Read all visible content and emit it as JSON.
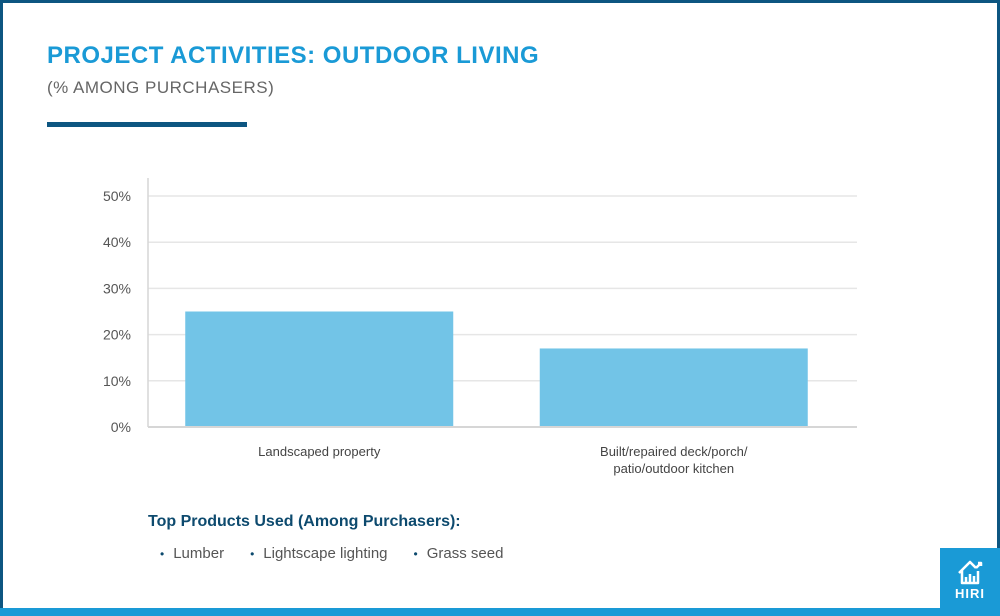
{
  "title": "PROJECT ACTIVITIES: OUTDOOR LIVING",
  "subtitle": "(% AMONG PURCHASERS)",
  "chart_data": {
    "type": "bar",
    "categories": [
      "Landscaped property",
      "Built/repaired deck/porch/ patio/outdoor kitchen"
    ],
    "category_lines": [
      [
        "Landscaped property"
      ],
      [
        "Built/repaired deck/porch/",
        "patio/outdoor kitchen"
      ]
    ],
    "values": [
      25,
      17
    ],
    "ylim": [
      0,
      50
    ],
    "yticks": [
      "0%",
      "10%",
      "20%",
      "30%",
      "40%",
      "50%"
    ],
    "grid": true,
    "bar_color": "#72c4e7"
  },
  "products": {
    "title": "Top Products Used (Among Purchasers):",
    "items": [
      "Lumber",
      "Lightscape lighting",
      "Grass seed"
    ]
  },
  "logo": {
    "text": "HIRI",
    "icon": "house-chart-icon"
  },
  "colors": {
    "accent": "#1a9ad6",
    "dark": "#0d5681"
  }
}
